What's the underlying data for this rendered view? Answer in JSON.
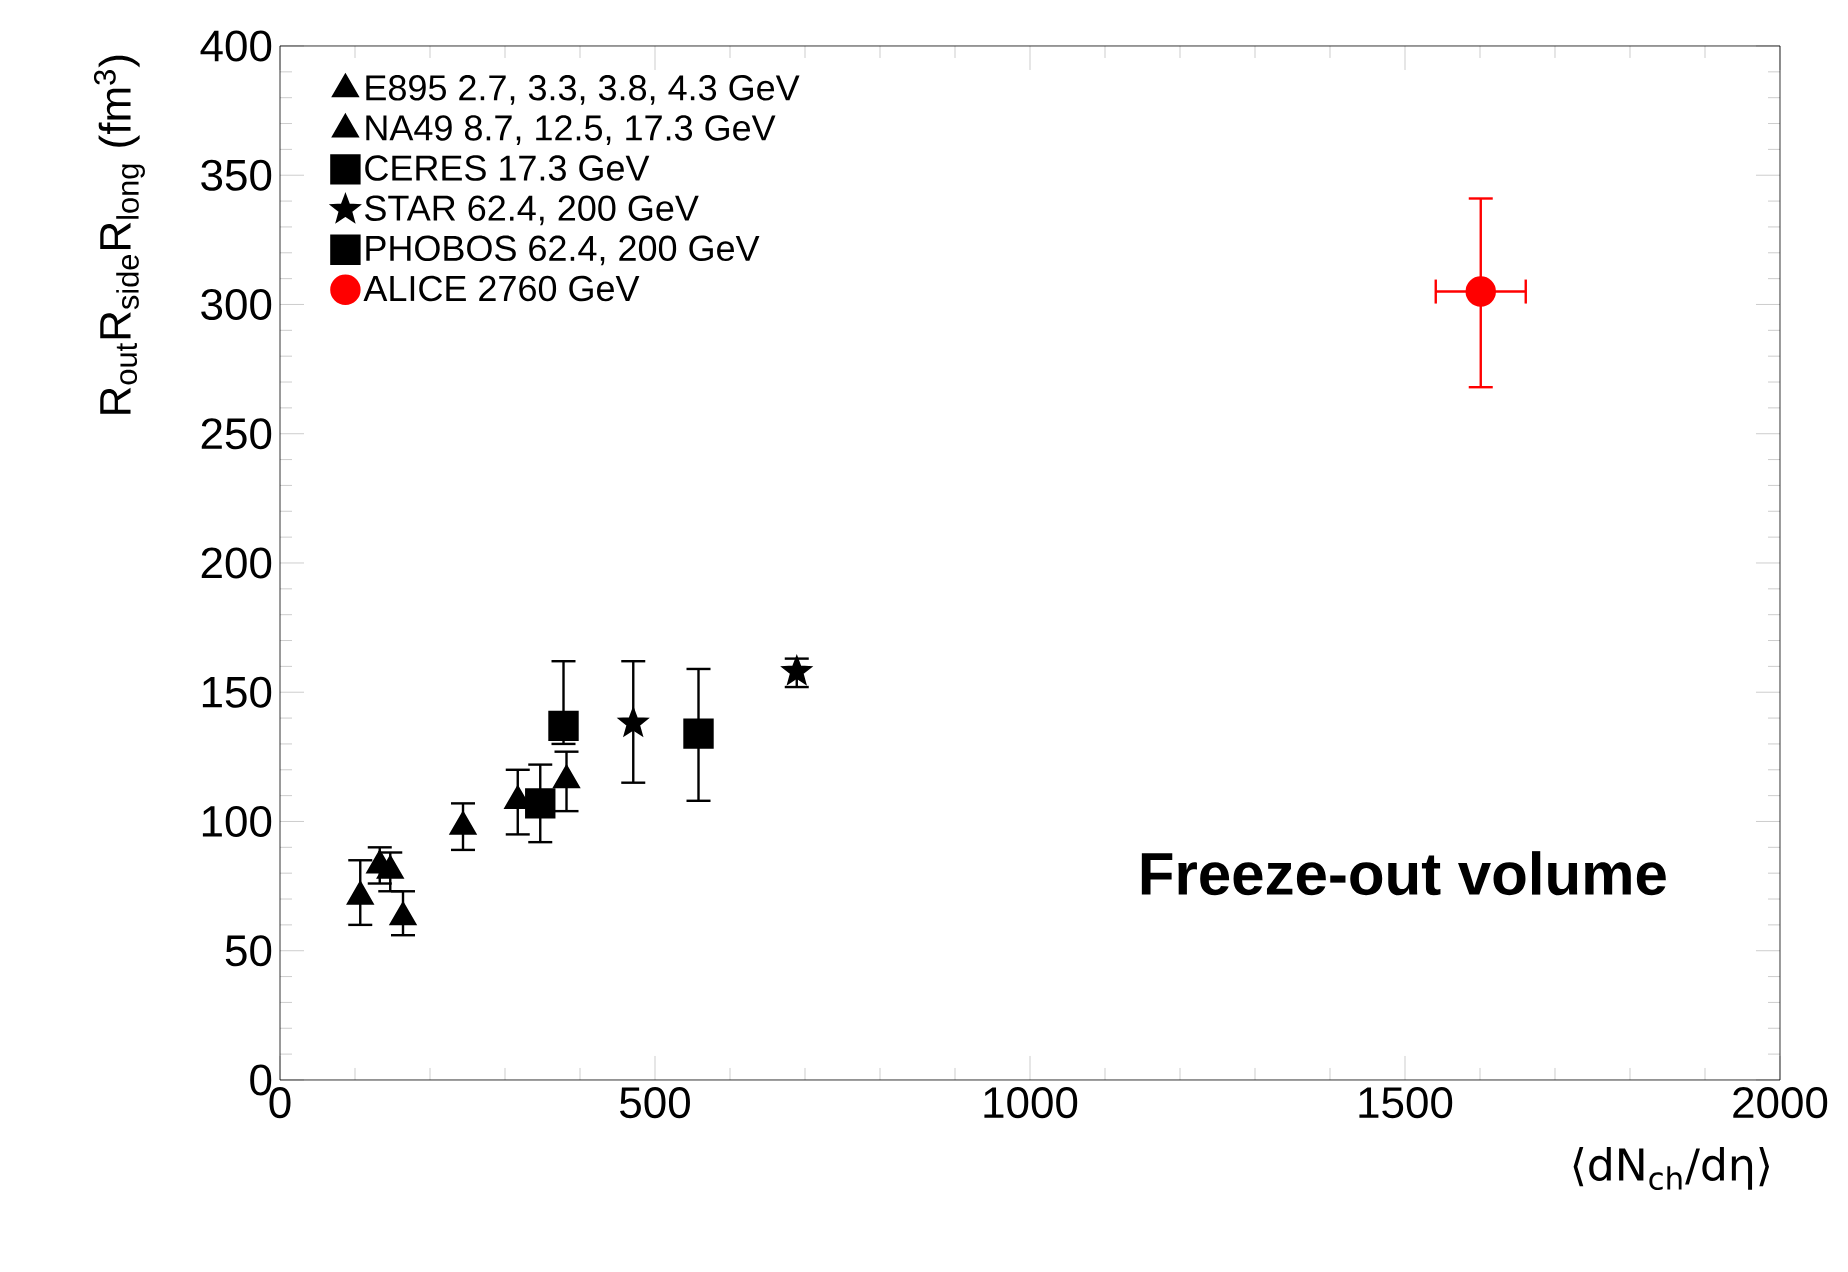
{
  "chart_data": {
    "type": "scatter",
    "xlabel": "⟨dN$_{ch}$/dη⟩",
    "ylabel": "R$_{out}$R$_{side}$R$_{long}$ (fm$^{3}$)",
    "xlim": [
      0,
      2000
    ],
    "ylim": [
      0,
      400
    ],
    "xticks": [
      0,
      500,
      1000,
      1500,
      2000
    ],
    "yticks": [
      0,
      50,
      100,
      150,
      200,
      250,
      300,
      350,
      400
    ],
    "legend": "top left",
    "grid": false,
    "annotations": [
      "Freeze-out volume"
    ],
    "series": [
      {
        "name": "E895 2.7, 3.3, 3.8, 4.3 GeV",
        "color": "#000000",
        "marker": "triangle",
        "x": [
          107,
          133,
          147,
          164
        ],
        "values": [
          71,
          83,
          81,
          63
        ],
        "errors": [
          [
            60,
            85
          ],
          [
            76,
            90
          ],
          [
            73,
            88
          ],
          [
            56,
            73
          ]
        ]
      },
      {
        "name": "NA49 8.7, 12.5, 17.3 GeV",
        "color": "#000000",
        "marker": "triangle",
        "x": [
          244,
          317,
          382
        ],
        "values": [
          98,
          108,
          116
        ],
        "errors": [
          [
            89,
            107
          ],
          [
            95,
            120
          ],
          [
            104,
            127
          ]
        ]
      },
      {
        "name": "CERES 17.3 GeV",
        "color": "#000000",
        "marker": "square",
        "x": [
          347
        ],
        "values": [
          107
        ],
        "errors": [
          [
            92,
            122
          ]
        ]
      },
      {
        "name": "STAR 62.4, 200 GeV",
        "color": "#000000",
        "marker": "star",
        "x": [
          471,
          689
        ],
        "values": [
          138,
          158
        ],
        "errors": [
          [
            115,
            162
          ],
          [
            152,
            163
          ]
        ]
      },
      {
        "name": "PHOBOS 62.4, 200 GeV",
        "color": "#000000",
        "marker": "square",
        "x": [
          378,
          558
        ],
        "values": [
          137,
          134
        ],
        "errors": [
          [
            130,
            162
          ],
          [
            108,
            159
          ]
        ]
      },
      {
        "name": "ALICE 2760 GeV",
        "color": "#ff0000",
        "marker": "circle",
        "x": [
          1601
        ],
        "values": [
          305
        ],
        "errors": [
          [
            268,
            341
          ]
        ],
        "xerrors": [
          60
        ]
      }
    ]
  }
}
